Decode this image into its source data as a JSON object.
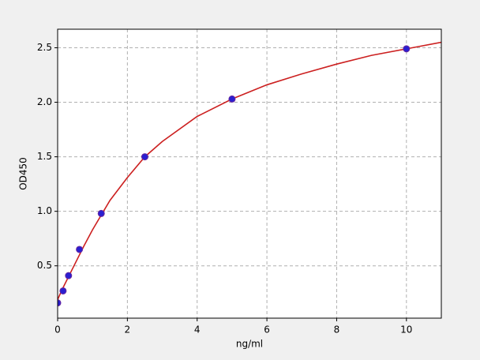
{
  "chart_data": {
    "type": "scatter",
    "x_label": "ng/ml",
    "y_label": "OD450",
    "xlim": [
      0,
      11
    ],
    "ylim": [
      0.02,
      2.67
    ],
    "xticks": [
      0,
      2,
      4,
      6,
      8,
      10
    ],
    "yticks": [
      0.5,
      {
        "value": 1,
        "label": "1.0"
      },
      1.5,
      {
        "value": 2,
        "label": "2.0"
      },
      2.5
    ],
    "grid": true,
    "series": [
      {
        "style": "line",
        "color": "#cc2020",
        "x": [
          0,
          0.125,
          0.25,
          0.5,
          0.75,
          1,
          1.5,
          2,
          2.5,
          3,
          4,
          5,
          6,
          7,
          8,
          9,
          10,
          11
        ],
        "values": [
          0.19,
          0.28,
          0.36,
          0.52,
          0.68,
          0.83,
          1.1,
          1.31,
          1.5,
          1.64,
          1.87,
          2.03,
          2.16,
          2.26,
          2.35,
          2.43,
          2.49,
          2.55
        ]
      },
      {
        "style": "markers",
        "color": "#2a1fd0",
        "x": [
          0,
          0.156,
          0.3125,
          0.625,
          1.25,
          2.5,
          5,
          10
        ],
        "values": [
          0.16,
          0.27,
          0.41,
          0.65,
          0.98,
          1.5,
          2.03,
          2.49
        ]
      }
    ]
  }
}
